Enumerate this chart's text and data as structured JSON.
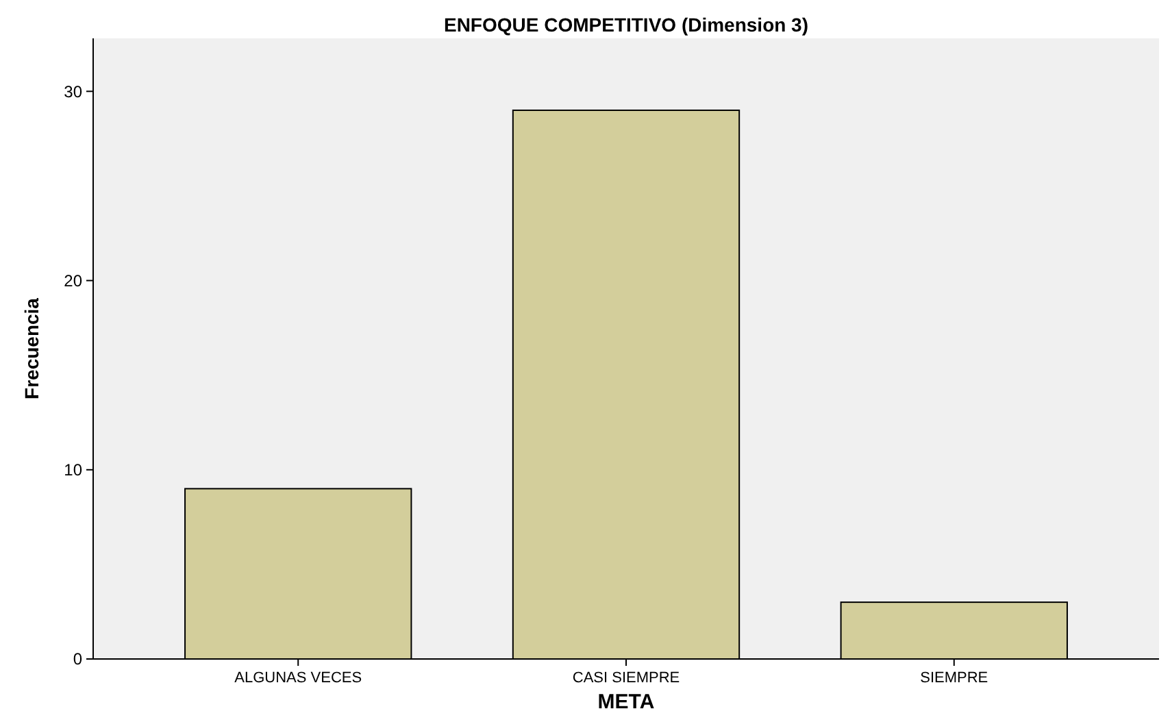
{
  "chart_data": {
    "type": "bar",
    "title": "ENFOQUE COMPETITIVO (Dimension 3)",
    "xlabel": "META",
    "ylabel": "Frecuencia",
    "categories": [
      "ALGUNAS VECES",
      "CASI SIEMPRE",
      "SIEMPRE"
    ],
    "values": [
      9,
      29,
      3
    ],
    "color": "#d3ce9b",
    "ylim": [
      0,
      32.8
    ],
    "yticks": [
      0,
      10,
      20,
      30
    ],
    "grid": false
  }
}
